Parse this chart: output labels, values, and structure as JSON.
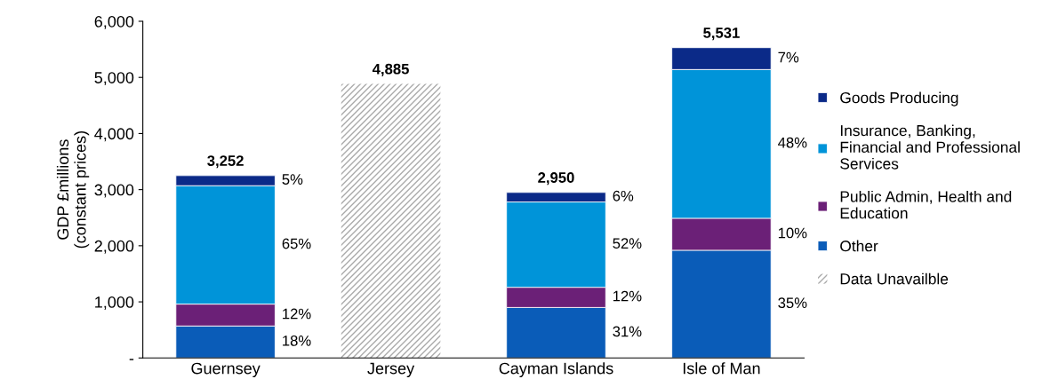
{
  "chart_data": {
    "type": "bar",
    "stacked": true,
    "ylabel": "GDP £millions\n(constant prices)",
    "categories": [
      "Guernsey",
      "Jersey",
      "Cayman Islands",
      "Isle of Man"
    ],
    "series": [
      {
        "name": "Other",
        "color": "#0a5cb8",
        "values": [
          570,
          null,
          900,
          1920
        ]
      },
      {
        "name": "Public Admin, Health and\nEducation",
        "color": "#6b2077",
        "values": [
          390,
          null,
          360,
          570
        ]
      },
      {
        "name": "Insurance, Banking,\nFinancial and Professional\nServices",
        "color": "#0094d9",
        "values": [
          2110,
          null,
          1520,
          2650
        ]
      },
      {
        "name": "Goods Producing",
        "color": "#0b2a88",
        "values": [
          180,
          null,
          170,
          390
        ]
      },
      {
        "name": "Data Unavailble",
        "color": "#ababab",
        "values": [
          null,
          4885,
          null,
          null
        ]
      }
    ],
    "totals": [
      "3,252",
      "4,885",
      "2,950",
      "5,531"
    ],
    "annotations": [
      "18%",
      "12%",
      "65%",
      "5%",
      "31%",
      "12%",
      "52%",
      "6%",
      "35%",
      "10%",
      "48%",
      "7%"
    ],
    "ylim": [
      0,
      6000
    ],
    "yticks": [
      {
        "value": 0,
        "label": "-"
      },
      {
        "value": 1000,
        "label": "1,000"
      },
      {
        "value": 2000,
        "label": "2,000"
      },
      {
        "value": 3000,
        "label": "3,000"
      },
      {
        "value": 4000,
        "label": "4,000"
      },
      {
        "value": 5000,
        "label": "5,000"
      },
      {
        "value": 6000,
        "label": "6,000"
      }
    ],
    "grid": false,
    "legend": "right"
  }
}
